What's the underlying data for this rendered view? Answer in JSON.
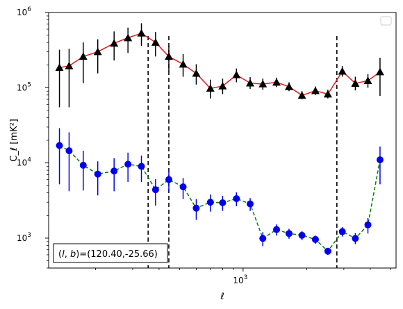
{
  "chart_data": {
    "type": "scatter",
    "xscale": "log",
    "yscale": "log",
    "xlim": [
      120,
      5300
    ],
    "ylim": [
      400,
      1000000
    ],
    "xlabel": "ℓ",
    "ylabel": "C_ℓ  [mK²]",
    "x_tick_labels": [
      {
        "value": 1000,
        "base": "10",
        "exp": "3"
      }
    ],
    "y_tick_labels": [
      {
        "value": 1000,
        "base": "10",
        "exp": "3"
      },
      {
        "value": 10000,
        "base": "10",
        "exp": "4"
      },
      {
        "value": 100000,
        "base": "10",
        "exp": "5"
      },
      {
        "value": 1000000,
        "base": "10",
        "exp": "6"
      }
    ],
    "annotation": "(l, b)=(120.40,-25.66)",
    "legend": "top-right (empty)",
    "vertical_lines": [
      355,
      445,
      2780
    ],
    "series": [
      {
        "marker": "triangle",
        "marker_color": "#000000",
        "line_color": "#e31a1c",
        "line_style": "solid",
        "points": [
          {
            "x": 135,
            "y": 185000,
            "lo": 55000,
            "hi": 320000
          },
          {
            "x": 150,
            "y": 195000,
            "lo": 55000,
            "hi": 330000
          },
          {
            "x": 175,
            "y": 260000,
            "lo": 115000,
            "hi": 400000
          },
          {
            "x": 205,
            "y": 300000,
            "lo": 155000,
            "hi": 440000
          },
          {
            "x": 245,
            "y": 390000,
            "lo": 230000,
            "hi": 560000
          },
          {
            "x": 285,
            "y": 460000,
            "lo": 290000,
            "hi": 630000
          },
          {
            "x": 330,
            "y": 530000,
            "lo": 360000,
            "hi": 720000
          },
          {
            "x": 385,
            "y": 400000,
            "lo": 260000,
            "hi": 550000
          },
          {
            "x": 445,
            "y": 260000,
            "lo": 165000,
            "hi": 360000
          },
          {
            "x": 520,
            "y": 205000,
            "lo": 140000,
            "hi": 280000
          },
          {
            "x": 600,
            "y": 155000,
            "lo": 110000,
            "hi": 205000
          },
          {
            "x": 700,
            "y": 98000,
            "lo": 72000,
            "hi": 128000
          },
          {
            "x": 800,
            "y": 105000,
            "lo": 82000,
            "hi": 132000
          },
          {
            "x": 930,
            "y": 148000,
            "lo": 118000,
            "hi": 180000
          },
          {
            "x": 1080,
            "y": 115000,
            "lo": 96000,
            "hi": 138000
          },
          {
            "x": 1240,
            "y": 112000,
            "lo": 94000,
            "hi": 132000
          },
          {
            "x": 1440,
            "y": 118000,
            "lo": 102000,
            "hi": 136000
          },
          {
            "x": 1650,
            "y": 103000,
            "lo": 90000,
            "hi": 118000
          },
          {
            "x": 1900,
            "y": 79000,
            "lo": 70000,
            "hi": 90000
          },
          {
            "x": 2200,
            "y": 91000,
            "lo": 80000,
            "hi": 104000
          },
          {
            "x": 2520,
            "y": 82000,
            "lo": 72000,
            "hi": 94000
          },
          {
            "x": 2950,
            "y": 165000,
            "lo": 140000,
            "hi": 195000
          },
          {
            "x": 3400,
            "y": 114000,
            "lo": 92000,
            "hi": 140000
          },
          {
            "x": 3900,
            "y": 124000,
            "lo": 100000,
            "hi": 152000
          },
          {
            "x": 4450,
            "y": 162000,
            "lo": 78000,
            "hi": 250000
          }
        ]
      },
      {
        "marker": "circle",
        "marker_color": "#0000ee",
        "line_color": "#008000",
        "line_style": "dashed",
        "points": [
          {
            "x": 135,
            "y": 17000,
            "lo": 5200,
            "hi": 29000
          },
          {
            "x": 150,
            "y": 14500,
            "lo": 4200,
            "hi": 25500
          },
          {
            "x": 175,
            "y": 9300,
            "lo": 4300,
            "hi": 14500
          },
          {
            "x": 205,
            "y": 7100,
            "lo": 3700,
            "hi": 10500
          },
          {
            "x": 245,
            "y": 7800,
            "lo": 4200,
            "hi": 11500
          },
          {
            "x": 285,
            "y": 9600,
            "lo": 5600,
            "hi": 13700
          },
          {
            "x": 330,
            "y": 9000,
            "lo": 5600,
            "hi": 12500
          },
          {
            "x": 385,
            "y": 4400,
            "lo": 2700,
            "hi": 6100
          },
          {
            "x": 445,
            "y": 6000,
            "lo": 4100,
            "hi": 7900
          },
          {
            "x": 520,
            "y": 4800,
            "lo": 3300,
            "hi": 6300
          },
          {
            "x": 600,
            "y": 2500,
            "lo": 1750,
            "hi": 3300
          },
          {
            "x": 700,
            "y": 3000,
            "lo": 2250,
            "hi": 3800
          },
          {
            "x": 800,
            "y": 2950,
            "lo": 2300,
            "hi": 3650
          },
          {
            "x": 930,
            "y": 3350,
            "lo": 2650,
            "hi": 4050
          },
          {
            "x": 1080,
            "y": 2850,
            "lo": 2300,
            "hi": 3400
          },
          {
            "x": 1240,
            "y": 990,
            "lo": 780,
            "hi": 1200
          },
          {
            "x": 1440,
            "y": 1300,
            "lo": 1080,
            "hi": 1520
          },
          {
            "x": 1650,
            "y": 1150,
            "lo": 980,
            "hi": 1330
          },
          {
            "x": 1900,
            "y": 1090,
            "lo": 940,
            "hi": 1240
          },
          {
            "x": 2200,
            "y": 960,
            "lo": 840,
            "hi": 1080
          },
          {
            "x": 2520,
            "y": 670,
            "lo": 600,
            "hi": 740
          },
          {
            "x": 2950,
            "y": 1220,
            "lo": 1050,
            "hi": 1400
          },
          {
            "x": 3400,
            "y": 990,
            "lo": 830,
            "hi": 1160
          },
          {
            "x": 3900,
            "y": 1500,
            "lo": 1150,
            "hi": 1850
          },
          {
            "x": 4450,
            "y": 11000,
            "lo": 5200,
            "hi": 16500
          }
        ]
      }
    ]
  }
}
